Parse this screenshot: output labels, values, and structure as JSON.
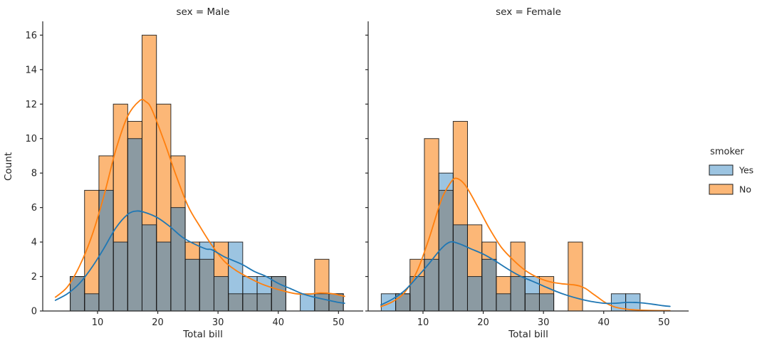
{
  "figure": {
    "background": "#ffffff"
  },
  "facets": {
    "male_title": "sex = Male",
    "female_title": "sex = Female"
  },
  "axes": {
    "xlabel": "Total bill",
    "ylabel": "Count",
    "x_ticks": [
      10,
      20,
      30,
      40,
      50
    ],
    "y_ticks": [
      0,
      2,
      4,
      6,
      8,
      10,
      12,
      14,
      16
    ],
    "xlim": [
      0.9,
      54.1
    ],
    "ylim": [
      0,
      16.8
    ]
  },
  "legend": {
    "title": "smoker",
    "items": [
      {
        "label": "Yes",
        "color": "#9cc4e1"
      },
      {
        "label": "No",
        "color": "#fcb777"
      }
    ]
  },
  "colors": {
    "bar_yes": "#9cc4e1",
    "bar_no": "#fcb777",
    "bar_overlap": "#8b9aa2",
    "bar_edge": "#1c1c1c",
    "kde_yes": "#1f77b4",
    "kde_no": "#ff7f0e",
    "spine": "#262626",
    "text": "#262626"
  },
  "chart_data": [
    {
      "type": "histogram",
      "facet": "sex = Male",
      "xlabel": "Total bill",
      "ylabel": "Count",
      "xlim": [
        0.9,
        54.1
      ],
      "ylim": [
        0,
        16.8
      ],
      "grid": false,
      "bin_edges": [
        3.07,
        5.46,
        7.84,
        10.23,
        12.62,
        15.01,
        17.39,
        19.78,
        22.17,
        24.55,
        26.94,
        29.33,
        31.71,
        34.1,
        36.49,
        38.88,
        41.26,
        43.65,
        46.04,
        48.42,
        50.81
      ],
      "series": [
        {
          "name": "Yes",
          "counts": [
            0,
            2,
            1,
            7,
            4,
            10,
            5,
            4,
            6,
            3,
            4,
            2,
            4,
            2,
            2,
            2,
            0,
            1,
            1,
            1
          ]
        },
        {
          "name": "No",
          "counts": [
            0,
            2,
            7,
            9,
            12,
            11,
            16,
            12,
            9,
            4,
            3,
            4,
            1,
            1,
            1,
            2,
            0,
            0,
            3,
            1
          ]
        }
      ],
      "kde": [
        {
          "name": "Yes",
          "points": [
            [
              3,
              0.62
            ],
            [
              5,
              1.0
            ],
            [
              7,
              1.6
            ],
            [
              9,
              2.5
            ],
            [
              11,
              3.6
            ],
            [
              13,
              4.8
            ],
            [
              15,
              5.6
            ],
            [
              16.5,
              5.8
            ],
            [
              18,
              5.7
            ],
            [
              20,
              5.4
            ],
            [
              22,
              4.9
            ],
            [
              24,
              4.3
            ],
            [
              26,
              3.9
            ],
            [
              28,
              3.6
            ],
            [
              29,
              3.55
            ],
            [
              31,
              3.15
            ],
            [
              32,
              3.0
            ],
            [
              34,
              2.7
            ],
            [
              36,
              2.3
            ],
            [
              38,
              2.0
            ],
            [
              40,
              1.6
            ],
            [
              42,
              1.3
            ],
            [
              44,
              1.0
            ],
            [
              46,
              0.8
            ],
            [
              48,
              0.65
            ],
            [
              50,
              0.5
            ],
            [
              51,
              0.45
            ]
          ]
        },
        {
          "name": "No",
          "points": [
            [
              3,
              0.8
            ],
            [
              5,
              1.4
            ],
            [
              7,
              2.6
            ],
            [
              9,
              4.3
            ],
            [
              11,
              6.6
            ],
            [
              13,
              9.3
            ],
            [
              15,
              11.3
            ],
            [
              17,
              12.2
            ],
            [
              18,
              12.15
            ],
            [
              19,
              11.7
            ],
            [
              21,
              9.9
            ],
            [
              23,
              7.9
            ],
            [
              25,
              6.1
            ],
            [
              27,
              4.9
            ],
            [
              29,
              3.8
            ],
            [
              31,
              2.9
            ],
            [
              33,
              2.35
            ],
            [
              35,
              1.95
            ],
            [
              37,
              1.6
            ],
            [
              39,
              1.35
            ],
            [
              41,
              1.15
            ],
            [
              43,
              1.0
            ],
            [
              45,
              0.98
            ],
            [
              47,
              1.05
            ],
            [
              49,
              1.0
            ],
            [
              51,
              0.85
            ]
          ]
        }
      ]
    },
    {
      "type": "histogram",
      "facet": "sex = Female",
      "xlabel": "Total bill",
      "ylabel": "Count",
      "xlim": [
        0.9,
        54.1
      ],
      "ylim": [
        0,
        16.8
      ],
      "grid": false,
      "bin_edges": [
        3.07,
        5.46,
        7.84,
        10.23,
        12.62,
        15.01,
        17.39,
        19.78,
        22.17,
        24.55,
        26.94,
        29.33,
        31.71,
        34.1,
        36.49,
        38.88,
        41.26,
        43.65,
        46.04,
        48.42,
        50.81
      ],
      "series": [
        {
          "name": "Yes",
          "counts": [
            1,
            1,
            2,
            3,
            8,
            5,
            2,
            3,
            1,
            2,
            2,
            1,
            0,
            0,
            0,
            0,
            1,
            1,
            0,
            0
          ]
        },
        {
          "name": "No",
          "counts": [
            0,
            1,
            3,
            10,
            7,
            11,
            5,
            4,
            2,
            4,
            1,
            2,
            0,
            4,
            0,
            0,
            0,
            0,
            0,
            0
          ]
        }
      ],
      "kde": [
        {
          "name": "Yes",
          "points": [
            [
              3,
              0.35
            ],
            [
              5,
              0.7
            ],
            [
              7,
              1.2
            ],
            [
              9,
              1.95
            ],
            [
              11,
              2.75
            ],
            [
              13,
              3.6
            ],
            [
              14.5,
              4.0
            ],
            [
              16,
              3.9
            ],
            [
              18,
              3.6
            ],
            [
              20,
              3.3
            ],
            [
              22,
              2.9
            ],
            [
              24,
              2.45
            ],
            [
              26,
              2.05
            ],
            [
              28,
              1.75
            ],
            [
              30,
              1.45
            ],
            [
              32,
              1.15
            ],
            [
              34,
              0.9
            ],
            [
              36,
              0.7
            ],
            [
              38,
              0.55
            ],
            [
              40,
              0.45
            ],
            [
              42,
              0.45
            ],
            [
              44,
              0.5
            ],
            [
              46,
              0.48
            ],
            [
              48,
              0.4
            ],
            [
              50,
              0.3
            ],
            [
              51,
              0.27
            ]
          ]
        },
        {
          "name": "No",
          "points": [
            [
              3,
              0.25
            ],
            [
              5,
              0.55
            ],
            [
              7,
              1.1
            ],
            [
              9,
              2.3
            ],
            [
              11,
              4.2
            ],
            [
              13,
              6.4
            ],
            [
              14.5,
              7.4
            ],
            [
              15.5,
              7.7
            ],
            [
              17,
              7.3
            ],
            [
              19,
              6.1
            ],
            [
              21,
              4.8
            ],
            [
              23,
              3.7
            ],
            [
              25,
              2.95
            ],
            [
              27,
              2.35
            ],
            [
              29,
              1.95
            ],
            [
              31,
              1.7
            ],
            [
              33,
              1.58
            ],
            [
              35,
              1.52
            ],
            [
              36,
              1.45
            ],
            [
              37,
              1.3
            ],
            [
              38,
              1.05
            ],
            [
              39,
              0.8
            ],
            [
              40,
              0.55
            ],
            [
              41,
              0.35
            ],
            [
              42,
              0.22
            ],
            [
              44,
              0.1
            ],
            [
              46,
              0.05
            ],
            [
              48,
              0.03
            ],
            [
              50,
              0.02
            ],
            [
              51,
              0.02
            ]
          ]
        }
      ]
    }
  ]
}
